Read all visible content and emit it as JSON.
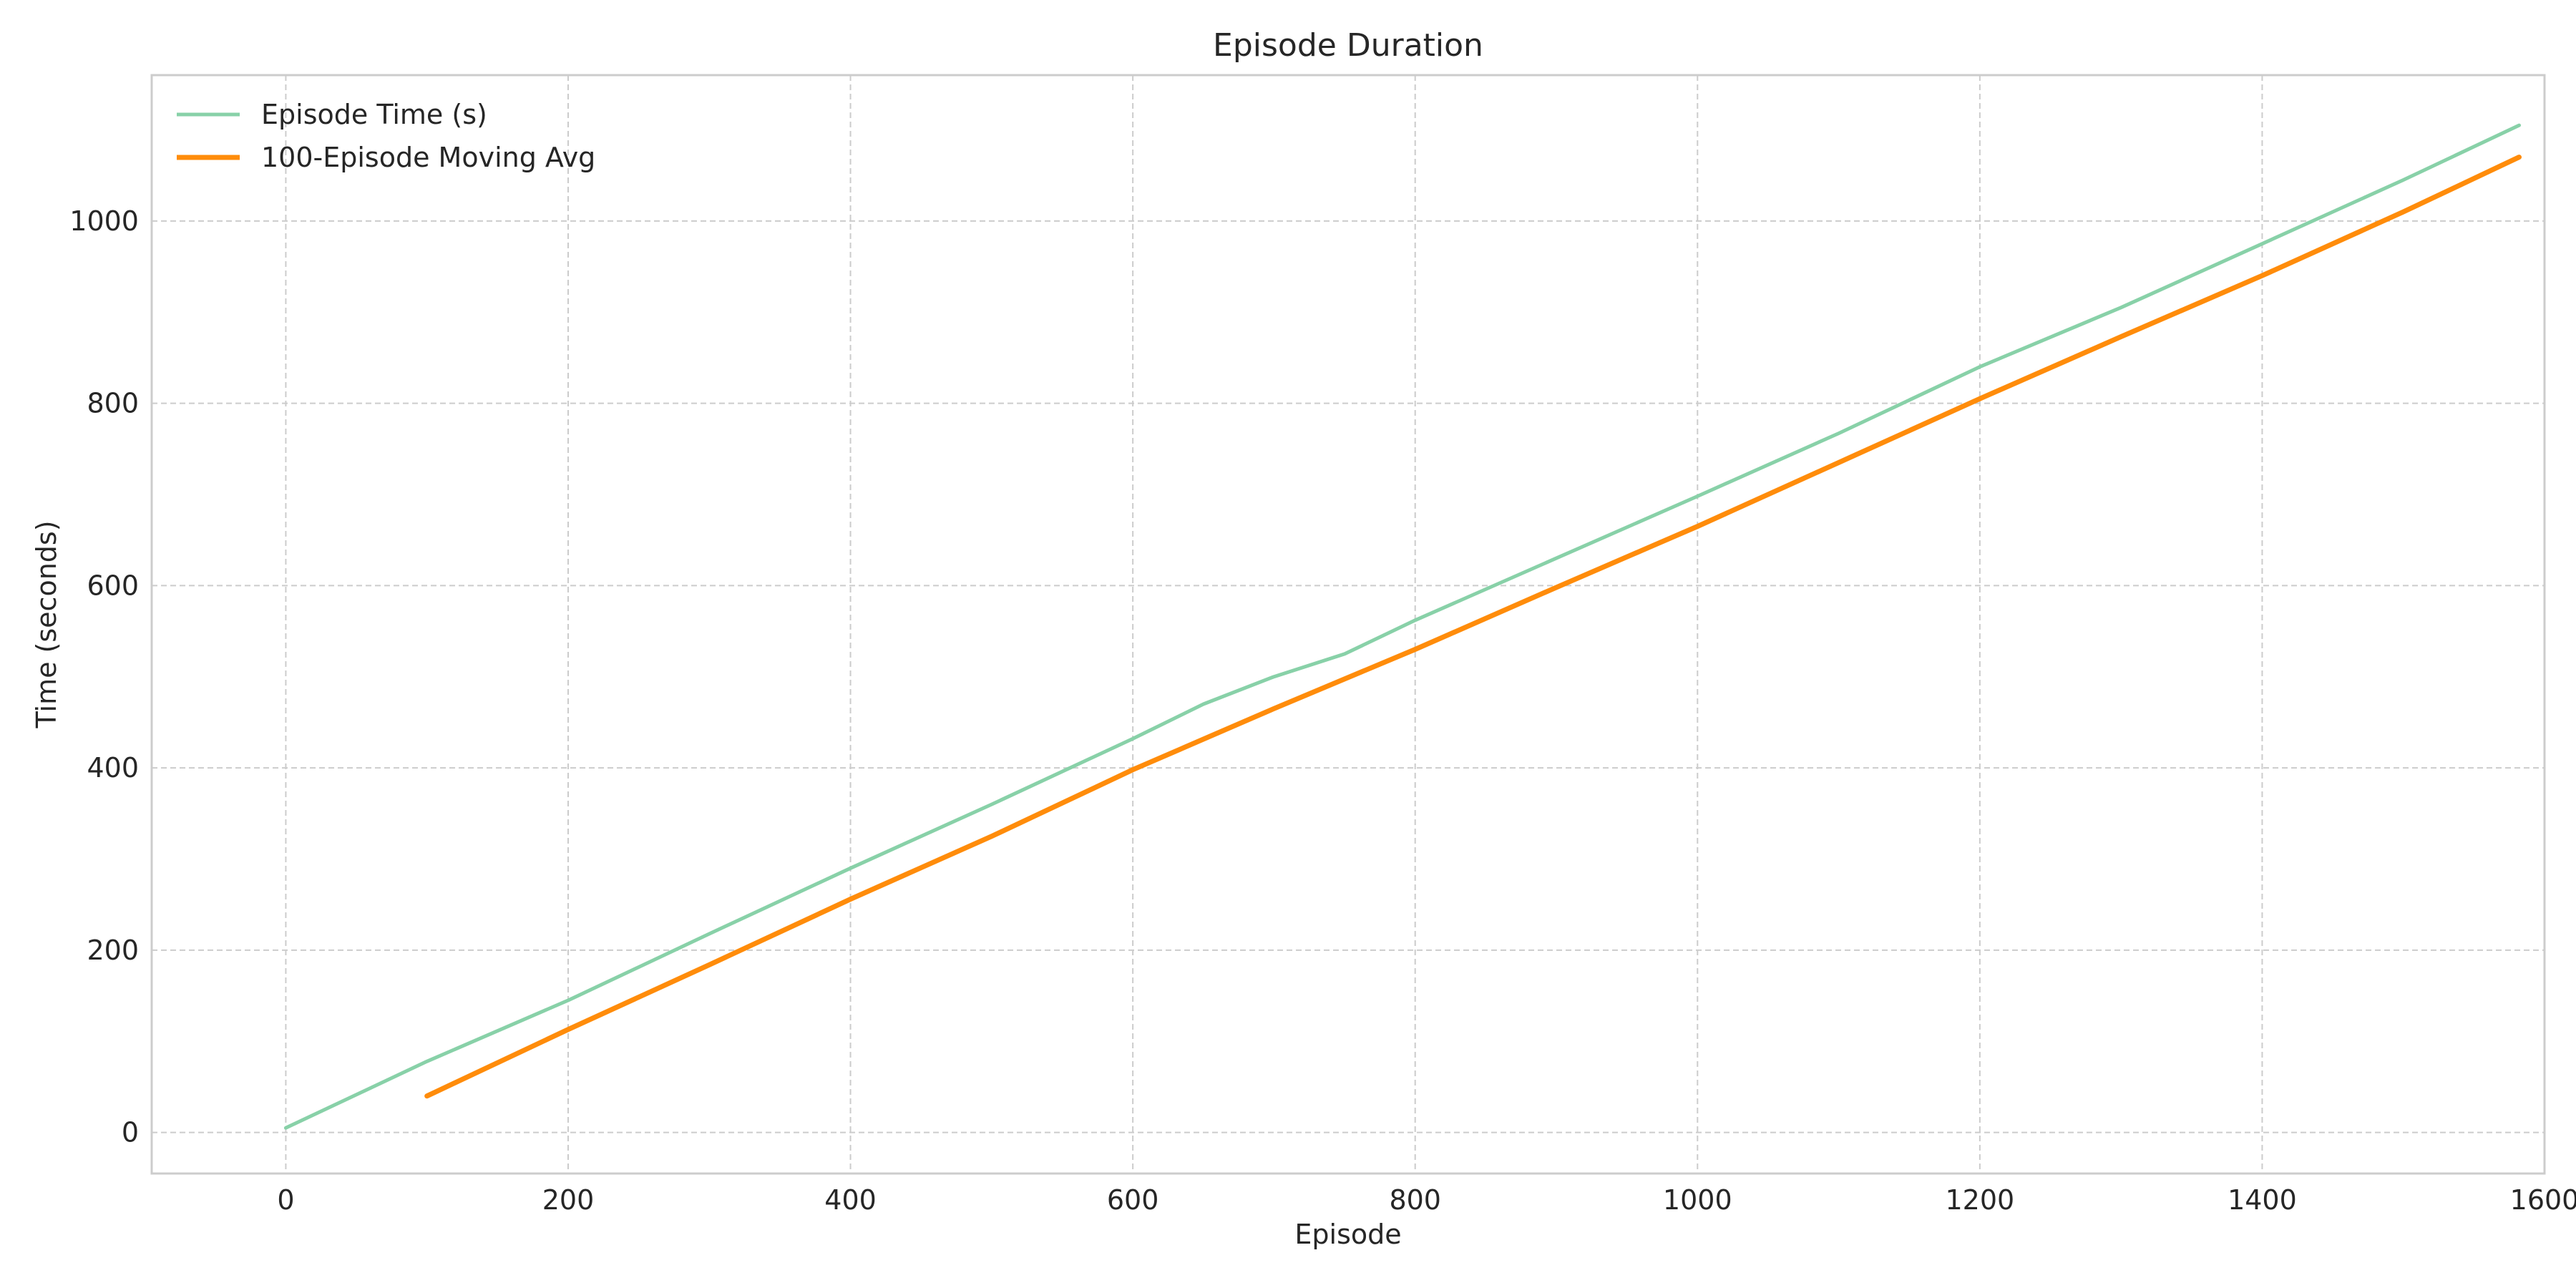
{
  "chart_data": {
    "type": "line",
    "title": "Episode Duration",
    "xlabel": "Episode",
    "ylabel": "Time (seconds)",
    "xlim": [
      -95,
      1600
    ],
    "ylim": [
      -45,
      1160
    ],
    "xticks": [
      0,
      200,
      400,
      600,
      800,
      1000,
      1200,
      1400,
      1600
    ],
    "yticks": [
      0,
      200,
      400,
      600,
      800,
      1000
    ],
    "grid": true,
    "legend_position": "top-left",
    "series": [
      {
        "name": "Episode Time (s)",
        "color": "#88d1a8",
        "x": [
          0,
          100,
          200,
          300,
          400,
          500,
          600,
          650,
          700,
          750,
          800,
          900,
          1000,
          1100,
          1200,
          1300,
          1400,
          1500,
          1582
        ],
        "y": [
          5,
          78,
          145,
          218,
          290,
          360,
          432,
          470,
          500,
          525,
          562,
          630,
          698,
          767,
          840,
          905,
          975,
          1045,
          1105
        ]
      },
      {
        "name": "100-Episode Moving Avg",
        "color": "#ff8c0a",
        "x": [
          100,
          200,
          300,
          400,
          500,
          600,
          700,
          800,
          900,
          1000,
          1100,
          1200,
          1300,
          1400,
          1500,
          1582
        ],
        "y": [
          40,
          113,
          184,
          256,
          325,
          398,
          465,
          530,
          598,
          665,
          735,
          805,
          873,
          940,
          1010,
          1070
        ]
      }
    ]
  }
}
